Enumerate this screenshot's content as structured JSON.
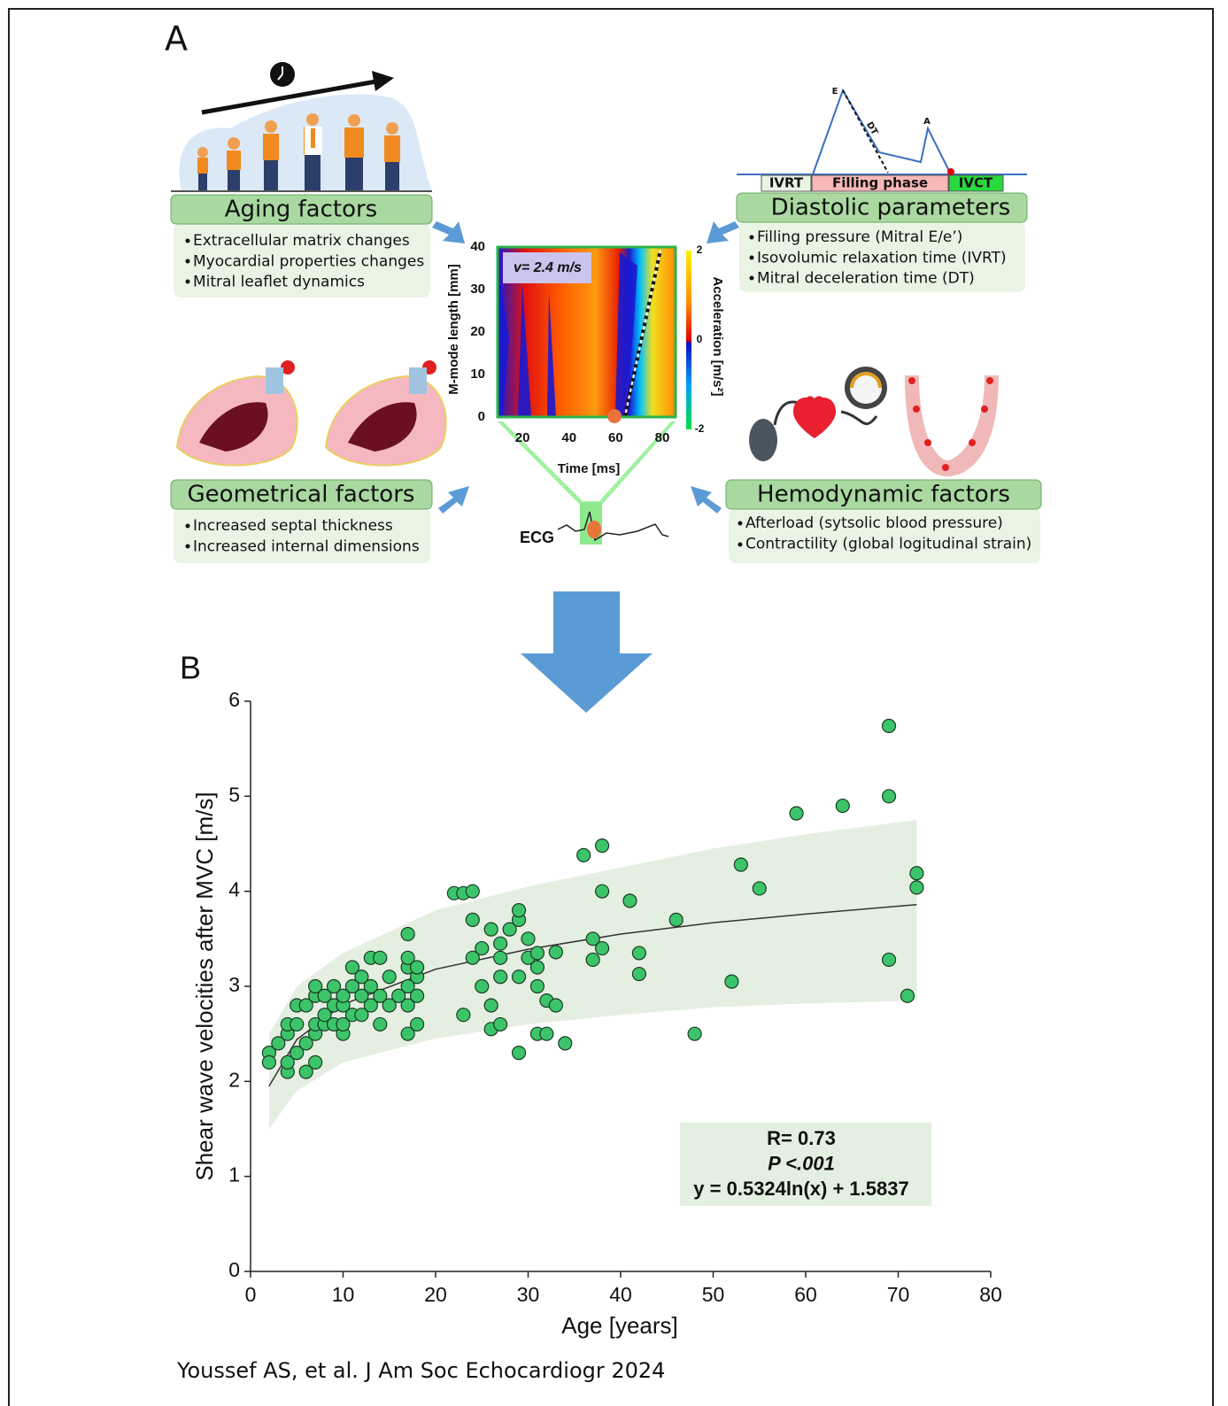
{
  "panel_a": {
    "label": "A",
    "aging": {
      "title": "Aging factors",
      "items": [
        "Extracellular matrix changes",
        "Myocardial properties changes",
        "Mitral leaflet dynamics"
      ]
    },
    "diastolic": {
      "title": "Diastolic parameters",
      "items": [
        "Filling pressure (Mitral E/e’)",
        "Isovolumic relaxation time (IVRT)",
        "Mitral deceleration time (DT)"
      ]
    },
    "geometrical": {
      "title": "Geometrical factors",
      "items": [
        "Increased septal thickness",
        "Increased internal dimensions"
      ]
    },
    "hemodynamic": {
      "title": "Hemodynamic factors",
      "items": [
        "Afterload (sytsolic blood pressure)",
        "Contractility (global logitudinal strain)"
      ]
    },
    "doppler": {
      "peak_e": "E",
      "peak_a": "A",
      "dt": "DT",
      "phases": [
        "IVRT",
        "Filling phase",
        "IVCT"
      ]
    },
    "mmode": {
      "velocity": "v= 2.4 m/s",
      "xlabel": "Time [ms]",
      "ylabel": "M-mode length [mm]",
      "colorbar_label": "Acceleration [m/s²]",
      "xlim": [
        9.3,
        85.7
      ],
      "xticks": [
        20,
        40,
        60,
        80
      ],
      "ylim": [
        0,
        40
      ],
      "yticks": [
        0,
        10,
        20,
        30,
        40
      ],
      "clim": [
        -2,
        2
      ],
      "cticks": [
        2,
        0,
        -2
      ]
    },
    "ecg": "ECG"
  },
  "chart_data": {
    "type": "scatter",
    "panel_label": "B",
    "xlabel": "Age [years]",
    "ylabel": "Shear wave velocities after MVC [m/s]",
    "xlim": [
      0,
      80
    ],
    "xticks": [
      0,
      10,
      20,
      30,
      40,
      50,
      60,
      70,
      80
    ],
    "ylim": [
      0,
      6
    ],
    "yticks": [
      0,
      1,
      2,
      3,
      4,
      5,
      6
    ],
    "color": "#3cc46a",
    "x": [
      2,
      2,
      3,
      4,
      4,
      4,
      4,
      5,
      5,
      5,
      6,
      6,
      6,
      7,
      7,
      7,
      7,
      7,
      8,
      8,
      8,
      9,
      9,
      9,
      10,
      10,
      10,
      10,
      11,
      11,
      11,
      12,
      12,
      12,
      13,
      13,
      13,
      14,
      14,
      14,
      15,
      15,
      16,
      17,
      17,
      17,
      17,
      17,
      17,
      18,
      18,
      18,
      18,
      22,
      23,
      23,
      24,
      24,
      24,
      25,
      25,
      26,
      26,
      26,
      27,
      27,
      27,
      27,
      28,
      29,
      29,
      29,
      29,
      30,
      30,
      31,
      31,
      31,
      31,
      32,
      32,
      33,
      33,
      34,
      36,
      37,
      37,
      38,
      38,
      38,
      41,
      42,
      42,
      46,
      48,
      52,
      53,
      55,
      59,
      64,
      69,
      69,
      69,
      71,
      72,
      72
    ],
    "values": [
      2.3,
      2.2,
      2.4,
      2.5,
      2.6,
      2.1,
      2.2,
      2.3,
      2.6,
      2.8,
      2.1,
      2.4,
      2.8,
      2.2,
      2.5,
      2.6,
      2.9,
      3.0,
      2.6,
      2.7,
      2.9,
      2.6,
      2.8,
      3.0,
      2.5,
      2.6,
      2.8,
      2.9,
      2.7,
      3.0,
      3.2,
      2.7,
      2.9,
      3.1,
      2.8,
      3.0,
      3.3,
      2.6,
      2.9,
      3.3,
      2.8,
      3.1,
      2.9,
      2.5,
      2.8,
      3.0,
      3.2,
      3.3,
      3.55,
      2.6,
      2.9,
      3.1,
      3.2,
      3.98,
      2.7,
      3.98,
      4.0,
      3.7,
      3.3,
      3.0,
      3.4,
      2.8,
      2.55,
      3.6,
      2.6,
      3.1,
      3.3,
      3.45,
      3.6,
      2.3,
      3.1,
      3.7,
      3.8,
      3.5,
      3.3,
      2.5,
      3.0,
      3.2,
      3.35,
      2.5,
      2.85,
      2.8,
      3.36,
      2.4,
      4.38,
      3.5,
      3.28,
      4.48,
      4.0,
      3.4,
      3.9,
      3.35,
      3.13,
      3.7,
      2.5,
      3.05,
      4.28,
      4.03,
      4.82,
      4.9,
      5.74,
      5.0,
      3.28,
      2.9,
      4.19,
      4.04
    ],
    "fit": {
      "color": "#333333",
      "x": [
        2,
        5,
        10,
        20,
        30,
        40,
        50,
        60,
        72
      ],
      "values": [
        1.95,
        2.44,
        2.81,
        3.18,
        3.39,
        3.55,
        3.67,
        3.76,
        3.86
      ]
    },
    "band": {
      "color": "#e4efe2",
      "x": [
        2,
        5,
        10,
        20,
        30,
        40,
        50,
        60,
        72
      ],
      "lower": [
        1.5,
        1.9,
        2.2,
        2.45,
        2.6,
        2.7,
        2.78,
        2.82,
        2.85
      ],
      "upper": [
        2.5,
        3.0,
        3.35,
        3.8,
        4.05,
        4.25,
        4.45,
        4.6,
        4.75
      ]
    },
    "annotations": [
      "R= 0.73",
      "P <.001",
      "y = 0.5324ln(x) + 1.5837"
    ]
  },
  "source": "Youssef AS, et al. J Am Soc Echocardiogr 2024"
}
